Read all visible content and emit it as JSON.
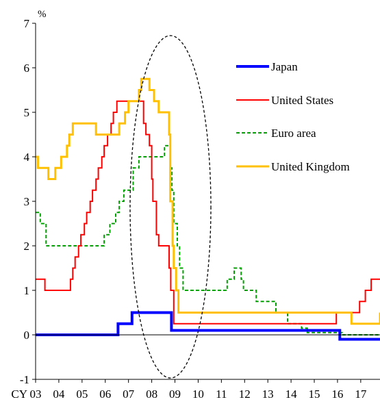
{
  "chart_data": {
    "type": "line",
    "ylabel": "%",
    "x_prefix": "CY",
    "xlim": [
      2003,
      2017.83
    ],
    "ylim": [
      -1,
      7
    ],
    "yticks": [
      -1,
      0,
      1,
      2,
      3,
      4,
      5,
      6,
      7
    ],
    "xticks": [
      {
        "label": "03",
        "x": 2003
      },
      {
        "label": "04",
        "x": 2004
      },
      {
        "label": "05",
        "x": 2005
      },
      {
        "label": "06",
        "x": 2006
      },
      {
        "label": "07",
        "x": 2007
      },
      {
        "label": "08",
        "x": 2008
      },
      {
        "label": "09",
        "x": 2009
      },
      {
        "label": "10",
        "x": 2010
      },
      {
        "label": "11",
        "x": 2011
      },
      {
        "label": "12",
        "x": 2012
      },
      {
        "label": "13",
        "x": 2013
      },
      {
        "label": "14",
        "x": 2014
      },
      {
        "label": "15",
        "x": 2015
      },
      {
        "label": "16",
        "x": 2016
      },
      {
        "label": "17",
        "x": 2017
      }
    ],
    "legend_position": "right",
    "annotation": "dashed ellipse around 2007-2009",
    "series": [
      {
        "name": "Japan",
        "color": "#0000ff",
        "style": "solid",
        "width": 4,
        "steps": [
          [
            2003.0,
            0.0
          ],
          [
            2006.55,
            0.25
          ],
          [
            2007.15,
            0.5
          ],
          [
            2008.85,
            0.1
          ],
          [
            2016.1,
            -0.1
          ],
          [
            2017.83,
            -0.1
          ]
        ]
      },
      {
        "name": "United States",
        "color": "#ff0000",
        "style": "solid",
        "width": 2,
        "steps": [
          [
            2003.0,
            1.25
          ],
          [
            2003.4,
            1.0
          ],
          [
            2004.5,
            1.25
          ],
          [
            2004.6,
            1.5
          ],
          [
            2004.7,
            1.75
          ],
          [
            2004.85,
            2.0
          ],
          [
            2004.95,
            2.25
          ],
          [
            2005.1,
            2.5
          ],
          [
            2005.2,
            2.75
          ],
          [
            2005.35,
            3.0
          ],
          [
            2005.45,
            3.25
          ],
          [
            2005.6,
            3.5
          ],
          [
            2005.7,
            3.75
          ],
          [
            2005.85,
            4.0
          ],
          [
            2005.95,
            4.25
          ],
          [
            2006.1,
            4.5
          ],
          [
            2006.25,
            4.75
          ],
          [
            2006.35,
            5.0
          ],
          [
            2006.5,
            5.25
          ],
          [
            2007.65,
            4.75
          ],
          [
            2007.75,
            4.5
          ],
          [
            2007.9,
            4.25
          ],
          [
            2008.0,
            3.5
          ],
          [
            2008.05,
            3.0
          ],
          [
            2008.2,
            2.25
          ],
          [
            2008.3,
            2.0
          ],
          [
            2008.75,
            1.5
          ],
          [
            2008.82,
            1.0
          ],
          [
            2008.95,
            0.25
          ],
          [
            2015.95,
            0.5
          ],
          [
            2016.95,
            0.75
          ],
          [
            2017.2,
            1.0
          ],
          [
            2017.45,
            1.25
          ],
          [
            2017.83,
            1.25
          ]
        ]
      },
      {
        "name": "Euro area",
        "color": "#00a000",
        "style": "dashed",
        "width": 2,
        "steps": [
          [
            2003.0,
            2.75
          ],
          [
            2003.2,
            2.5
          ],
          [
            2003.45,
            2.0
          ],
          [
            2005.95,
            2.25
          ],
          [
            2006.2,
            2.5
          ],
          [
            2006.45,
            2.75
          ],
          [
            2006.6,
            3.0
          ],
          [
            2006.8,
            3.25
          ],
          [
            2007.2,
            3.75
          ],
          [
            2007.45,
            4.0
          ],
          [
            2008.55,
            4.25
          ],
          [
            2008.8,
            3.75
          ],
          [
            2008.87,
            3.25
          ],
          [
            2008.95,
            2.5
          ],
          [
            2009.1,
            2.0
          ],
          [
            2009.2,
            1.5
          ],
          [
            2009.35,
            1.0
          ],
          [
            2011.25,
            1.25
          ],
          [
            2011.55,
            1.5
          ],
          [
            2011.85,
            1.25
          ],
          [
            2011.95,
            1.0
          ],
          [
            2012.5,
            0.75
          ],
          [
            2013.35,
            0.5
          ],
          [
            2013.85,
            0.25
          ],
          [
            2014.45,
            0.15
          ],
          [
            2014.7,
            0.05
          ],
          [
            2016.2,
            0.0
          ],
          [
            2017.83,
            0.0
          ]
        ]
      },
      {
        "name": "United Kingdom",
        "color": "#ffc000",
        "style": "solid",
        "width": 3,
        "steps": [
          [
            2003.0,
            4.0
          ],
          [
            2003.1,
            3.75
          ],
          [
            2003.55,
            3.5
          ],
          [
            2003.85,
            3.75
          ],
          [
            2004.1,
            4.0
          ],
          [
            2004.35,
            4.25
          ],
          [
            2004.45,
            4.5
          ],
          [
            2004.6,
            4.75
          ],
          [
            2005.6,
            4.5
          ],
          [
            2006.6,
            4.75
          ],
          [
            2006.85,
            5.0
          ],
          [
            2007.0,
            5.25
          ],
          [
            2007.45,
            5.5
          ],
          [
            2007.55,
            5.75
          ],
          [
            2007.9,
            5.5
          ],
          [
            2008.1,
            5.25
          ],
          [
            2008.3,
            5.0
          ],
          [
            2008.75,
            4.5
          ],
          [
            2008.8,
            3.0
          ],
          [
            2008.9,
            2.0
          ],
          [
            2008.95,
            1.5
          ],
          [
            2009.05,
            1.0
          ],
          [
            2009.15,
            0.5
          ],
          [
            2016.6,
            0.25
          ],
          [
            2017.83,
            0.5
          ]
        ]
      }
    ]
  }
}
